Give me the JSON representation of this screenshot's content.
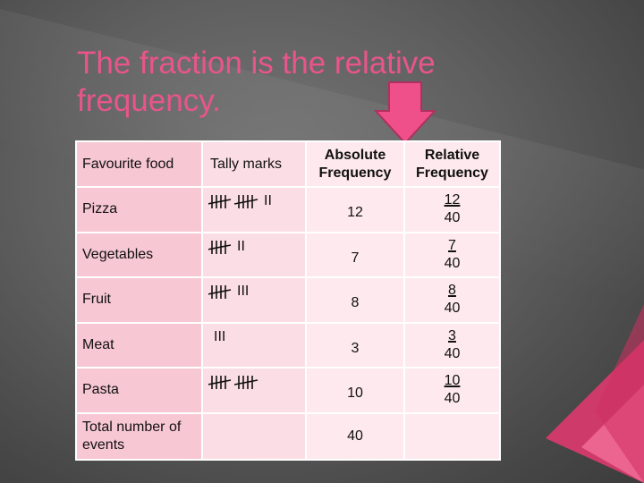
{
  "slide": {
    "title": "The fraction is the relative frequency.",
    "colors": {
      "title": "#e8558a",
      "arrow": "#f0508a",
      "header_cell": "#f7c7d3",
      "body_cell": "#fde9ee"
    }
  },
  "table": {
    "headers": {
      "food": "Favourite food",
      "tally": "Tally marks",
      "absolute": "Absolute Frequency",
      "relative": "Relative Frequency"
    },
    "rows": [
      {
        "food": "Pizza",
        "tally_count": 12,
        "tally_extra": "II",
        "absolute": "12",
        "relative_num": "12",
        "relative_den": "40"
      },
      {
        "food": "Vegetables",
        "tally_count": 7,
        "tally_extra": "II",
        "absolute": "7",
        "relative_num": "7",
        "relative_den": "40"
      },
      {
        "food": "Fruit",
        "tally_count": 8,
        "tally_extra": "III",
        "absolute": "8",
        "relative_num": "8",
        "relative_den": "40"
      },
      {
        "food": "Meat",
        "tally_count": 3,
        "tally_extra": "III",
        "absolute": "3",
        "relative_num": "3",
        "relative_den": "40"
      },
      {
        "food": "Pasta",
        "tally_count": 10,
        "tally_extra": "",
        "absolute": "10",
        "relative_num": "10",
        "relative_den": "40"
      }
    ],
    "total": {
      "label": "Total number of events",
      "absolute": "40"
    }
  }
}
